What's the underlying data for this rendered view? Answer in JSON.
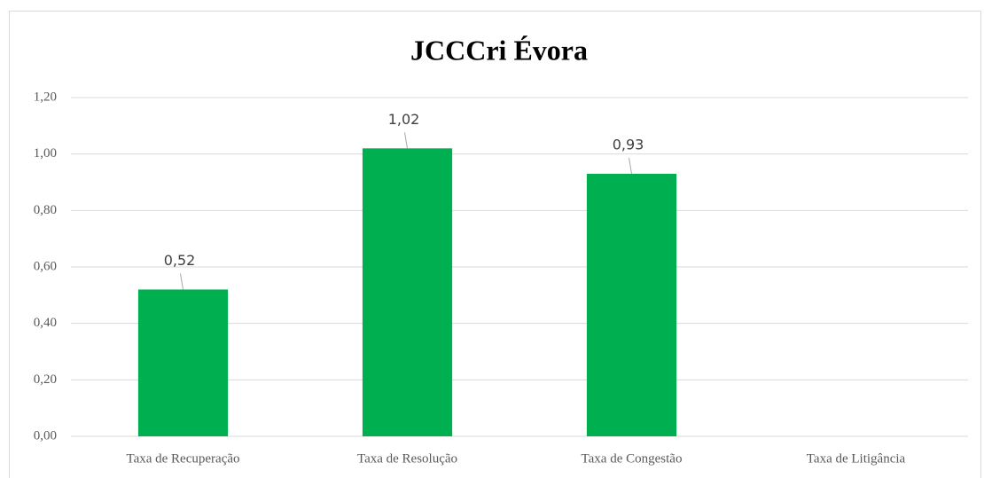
{
  "chart_data": {
    "type": "bar",
    "title": "JCCCri Évora",
    "categories": [
      "Taxa de Recuperação",
      "Taxa de Resolução",
      "Taxa de Congestão",
      "Taxa de Litigância"
    ],
    "values": [
      0.52,
      1.02,
      0.93,
      null
    ],
    "value_labels": [
      "0,52",
      "1,02",
      "0,93",
      null
    ],
    "color": "#00b050",
    "ylim": [
      0,
      1.2
    ],
    "yticks": [
      {
        "value": 0,
        "label": "0,00"
      },
      {
        "value": 0.2,
        "label": "0,20"
      },
      {
        "value": 0.4,
        "label": "0,40"
      },
      {
        "value": 0.6,
        "label": "0,60"
      },
      {
        "value": 0.8,
        "label": "0,80"
      },
      {
        "value": 1,
        "label": "1,00"
      },
      {
        "value": 1.2,
        "label": "1,20"
      }
    ],
    "grid": true
  }
}
